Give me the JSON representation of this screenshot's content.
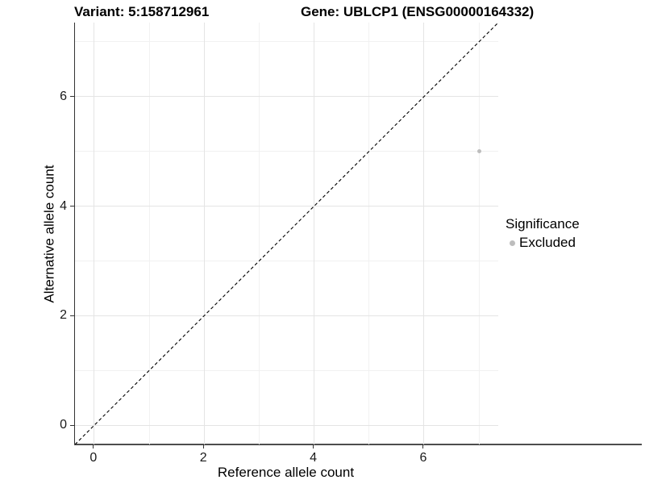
{
  "titles": {
    "left": "Variant: 5:158712961",
    "right": "Gene: UBLCP1 (ENSG00000164332)"
  },
  "chart_data": {
    "type": "scatter",
    "xlabel": "Reference allele count",
    "ylabel": "Alternative allele count",
    "xlim": [
      -0.35,
      7.35
    ],
    "ylim": [
      -0.35,
      7.35
    ],
    "x_major_ticks": [
      0,
      2,
      4,
      6
    ],
    "y_major_ticks": [
      0,
      2,
      4,
      6
    ],
    "x_minor_gridlines": [
      1,
      3,
      5,
      7
    ],
    "y_minor_gridlines": [
      1,
      3,
      5,
      7
    ],
    "grid": "on",
    "points": [
      {
        "x": 7,
        "y": 5,
        "series": "Excluded"
      }
    ],
    "point_color": "#bdbdbd",
    "identity_line": {
      "equation": "y = x",
      "style": "dashed",
      "color": "#000000"
    },
    "legend": {
      "title": "Significance",
      "position": "right",
      "entries": [
        {
          "label": "Excluded",
          "color": "#bdbdbd"
        }
      ]
    }
  },
  "colors": {
    "grid_major": "#e4e4e4",
    "grid_minor": "#f1f1f1",
    "axis_line": "#4d4d4d",
    "text": "#000000"
  }
}
